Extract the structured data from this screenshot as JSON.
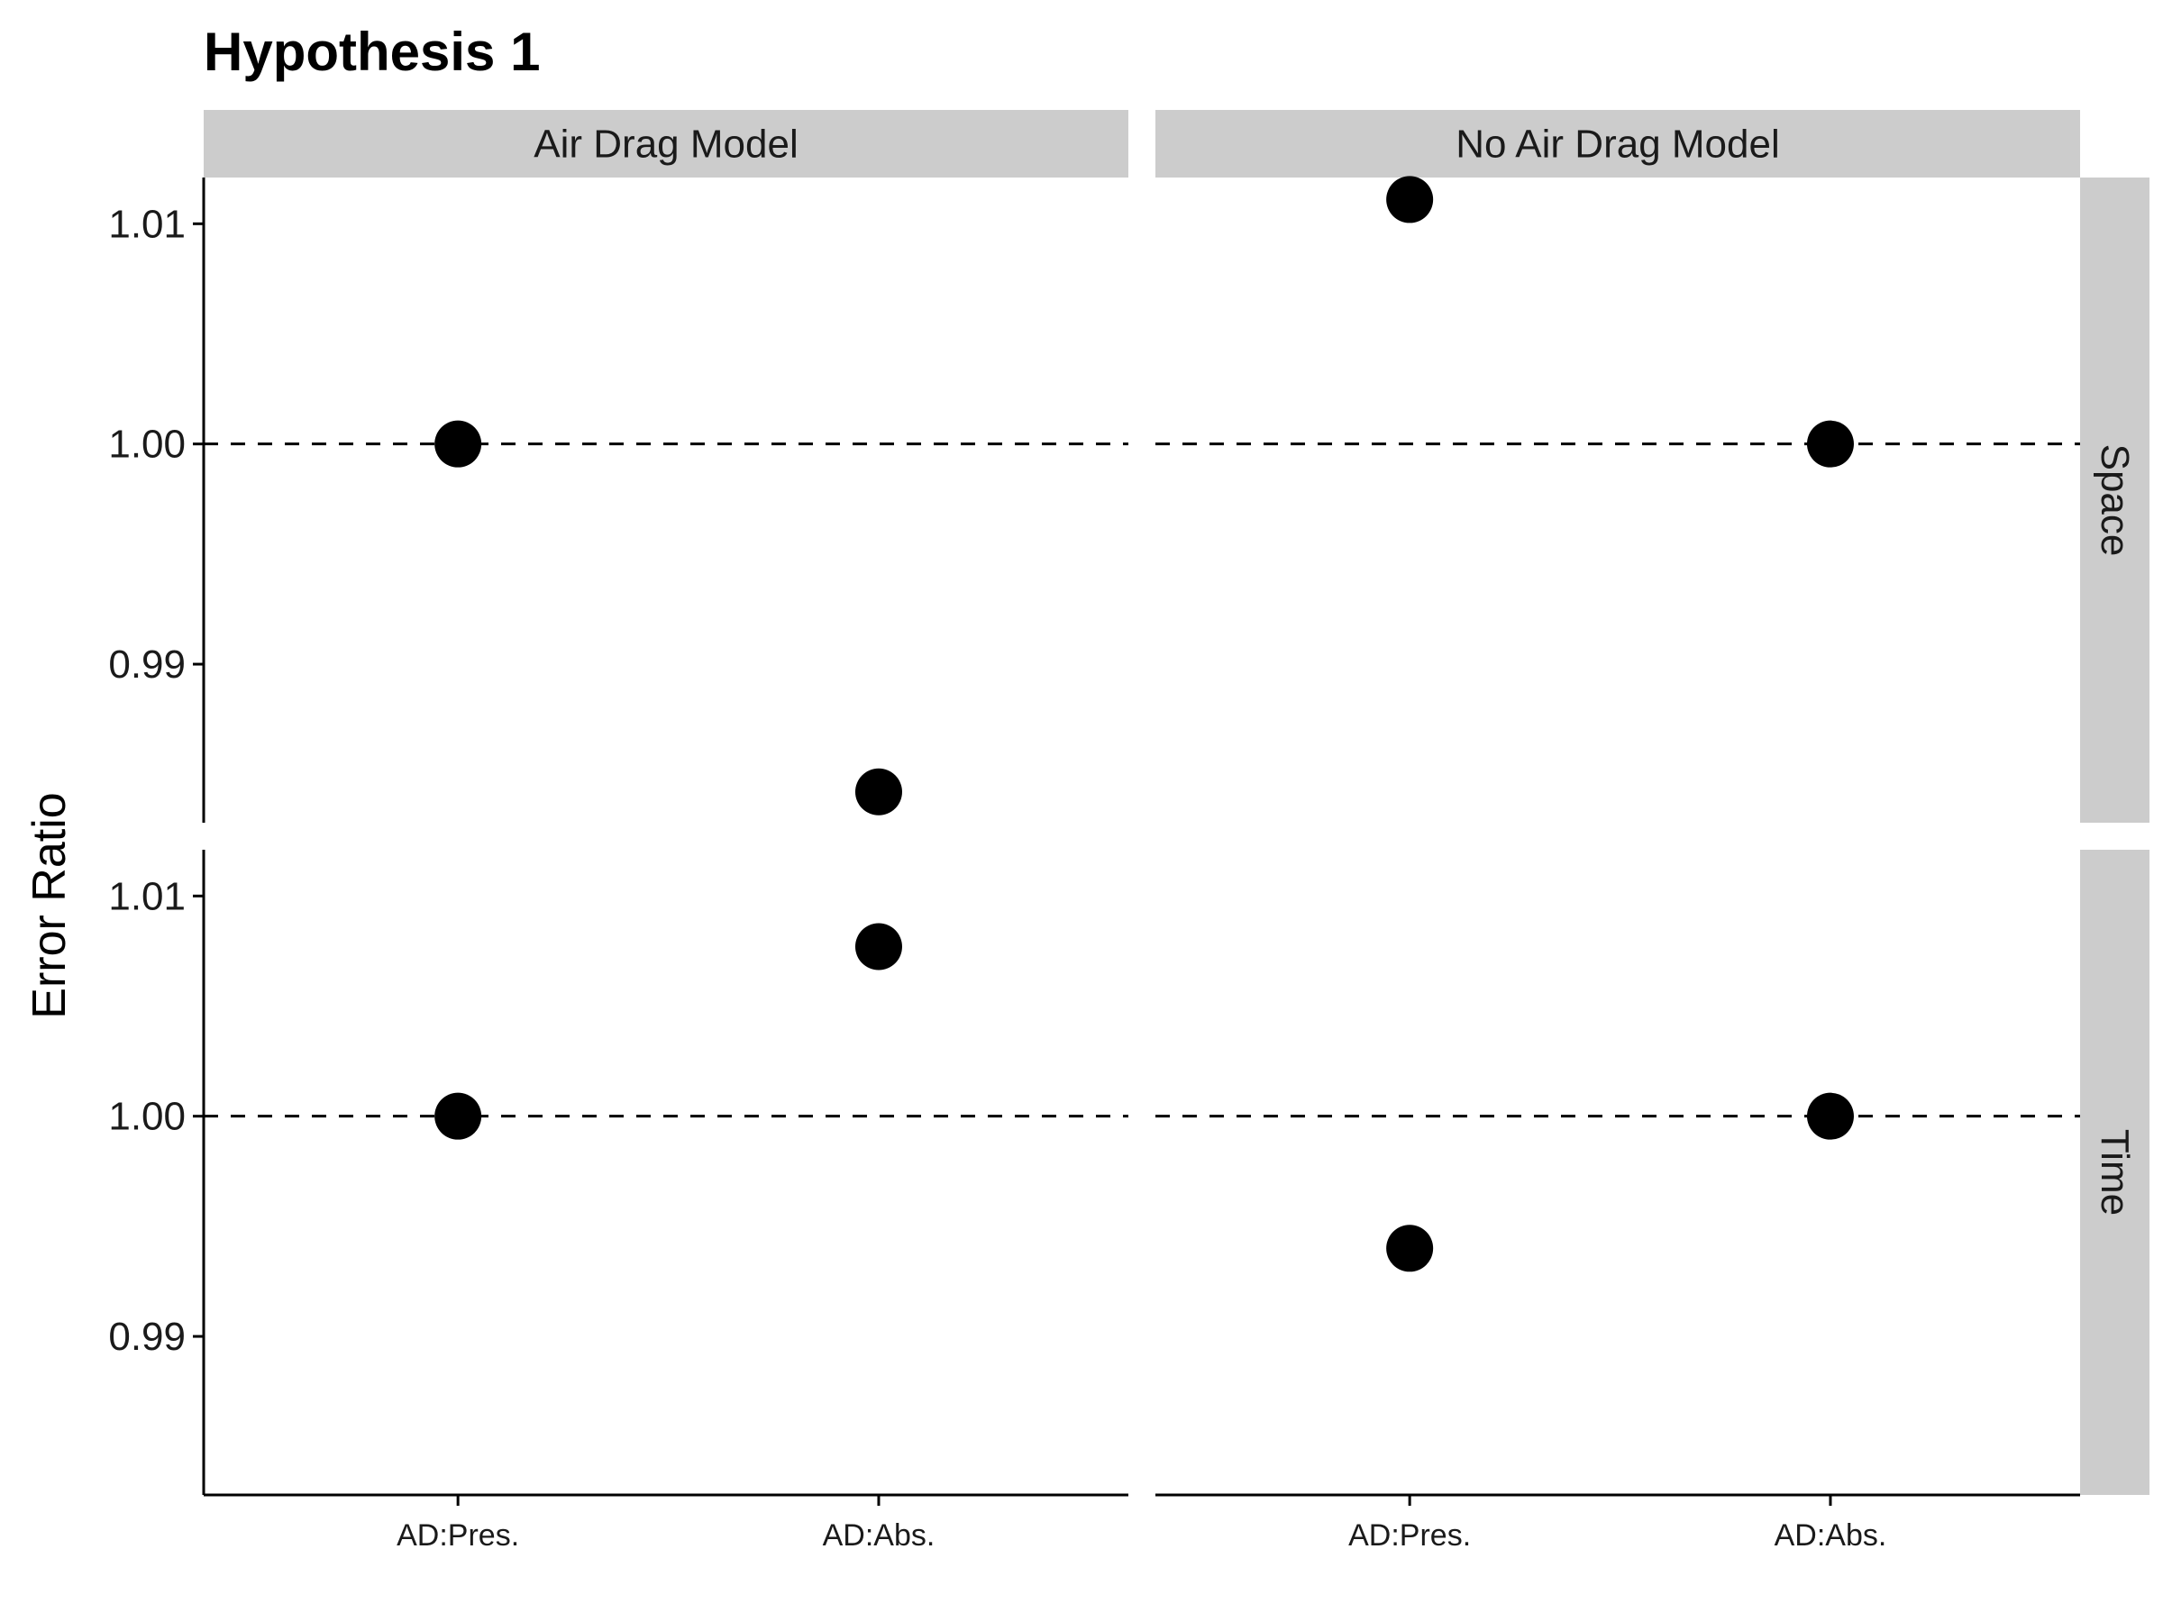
{
  "chart_data": {
    "type": "scatter",
    "title": "Hypothesis 1",
    "ylabel": "Error Ratio",
    "xlabel": "",
    "categories": [
      "AD:Pres.",
      "AD:Abs."
    ],
    "col_facets": [
      "Air Drag Model",
      "No Air Drag Model"
    ],
    "row_facets": [
      "Space",
      "Time"
    ],
    "ylim": [
      0.9828,
      1.0121
    ],
    "yticks": [
      0.99,
      1.0,
      1.01
    ],
    "ytick_labels": [
      "0.99",
      "1.00",
      "1.01"
    ],
    "reference_line": 1.0,
    "series": [
      {
        "name": "Air Drag Model / Space",
        "col": 0,
        "row": 0,
        "values": [
          1.0,
          0.9842
        ]
      },
      {
        "name": "No Air Drag Model / Space",
        "col": 1,
        "row": 0,
        "values": [
          1.0111,
          1.0
        ]
      },
      {
        "name": "Air Drag Model / Time",
        "col": 0,
        "row": 1,
        "values": [
          1.0,
          1.0077
        ]
      },
      {
        "name": "No Air Drag Model / Time",
        "col": 1,
        "row": 1,
        "values": [
          0.994,
          1.0
        ]
      }
    ]
  }
}
